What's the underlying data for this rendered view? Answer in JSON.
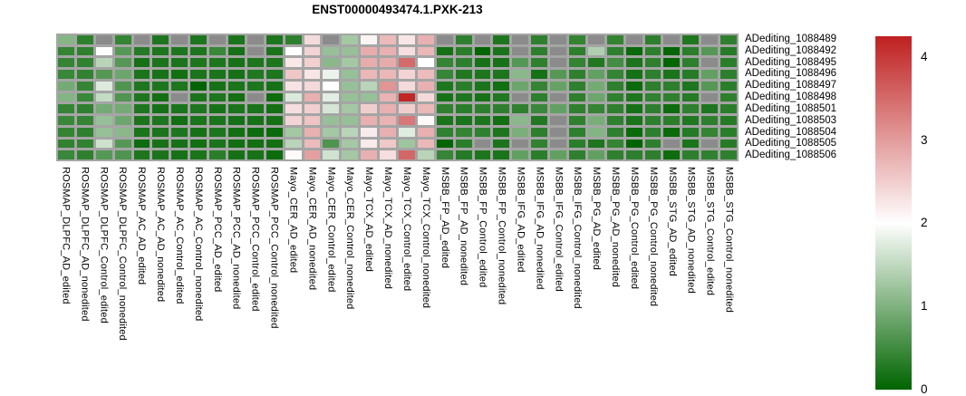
{
  "title": "ENST00000493474.1.PXK-213",
  "chart_data": {
    "type": "heatmap",
    "title": "ENST00000493474.1.PXK-213",
    "rows": [
      "ADediting_1088489",
      "ADediting_1088492",
      "ADediting_1088495",
      "ADediting_1088496",
      "ADediting_1088497",
      "ADediting_1088498",
      "ADediting_1088501",
      "ADediting_1088503",
      "ADediting_1088504",
      "ADediting_1088505",
      "ADediting_1088506"
    ],
    "columns": [
      "ROSMAP_DLPFC_AD_edited",
      "ROSMAP_DLPFC_AD_nonedited",
      "ROSMAP_DLPFC_Control_edited",
      "ROSMAP_DLPFC_Control_nonedited",
      "ROSMAP_AC_AD_edited",
      "ROSMAP_AC_AD_nonedited",
      "ROSMAP_AC_Control_edited",
      "ROSMAP_AC_Control_nonedited",
      "ROSMAP_PCC_AD_edited",
      "ROSMAP_PCC_AD_nonedited",
      "ROSMAP_PCC_Control_edited",
      "ROSMAP_PCC_Control_nonedited",
      "Mayo_CER_AD_edited",
      "Mayo_CER_AD_nonedited",
      "Mayo_CER_Control_edited",
      "Mayo_CER_Control_nonedited",
      "Mayo_TCX_AD_edited",
      "Mayo_TCX_AD_nonedited",
      "Mayo_TCX_Control_edited",
      "Mayo_TCX_Control_nonedited",
      "MSBB_FP_AD_edited",
      "MSBB_FP_AD_nonedited",
      "MSBB_FP_Control_edited",
      "MSBB_FP_Control_nonedited",
      "MSBB_IFG_AD_edited",
      "MSBB_IFG_AD_nonedited",
      "MSBB_IFG_Control_edited",
      "MSBB_IFG_Control_nonedited",
      "MSBB_PG_AD_edited",
      "MSBB_PG_AD_nonedited",
      "MSBB_PG_Control_edited",
      "MSBB_PG_Control_nonedited",
      "MSBB_STG_AD_edited",
      "MSBB_STG_AD_nonedited",
      "MSBB_STG_Control_edited",
      "MSBB_STG_Control_nonedited"
    ],
    "values": [
      [
        1.05,
        0.36,
        "NA",
        0.41,
        "NA",
        0.23,
        "NA",
        0.23,
        "NA",
        0.21,
        "NA",
        0.23,
        0.36,
        2.35,
        "NA",
        1.29,
        2.1,
        2.7,
        2.25,
        2.8,
        "NA",
        0.36,
        "NA",
        0.23,
        "NA",
        0.36,
        "NA",
        0.4,
        "NA",
        0.4,
        "NA",
        0.35,
        "NA",
        0.24,
        "NA",
        0.36
      ],
      [
        0.41,
        0.36,
        2.0,
        0.67,
        0.29,
        0.23,
        0.23,
        0.23,
        0.45,
        0.17,
        "NA",
        0.21,
        2.0,
        2.43,
        1.19,
        1.19,
        2.83,
        2.8,
        2.33,
        2.72,
        0.17,
        0.33,
        0.02,
        0.21,
        "NA",
        0.35,
        "NA",
        0.35,
        1.38,
        0.36,
        0.08,
        0.35,
        0.03,
        0.33,
        0.67,
        0.3
      ],
      [
        0.41,
        0.38,
        1.45,
        0.67,
        0.17,
        0.21,
        0.21,
        0.23,
        0.23,
        0.18,
        0.23,
        0.23,
        2.23,
        2.47,
        1.08,
        1.29,
        2.83,
        2.85,
        3.5,
        2.0,
        0.41,
        0.35,
        0.18,
        0.18,
        0.67,
        0.36,
        "NA",
        0.4,
        0.26,
        0.53,
        0.21,
        0.35,
        0.02,
        0.35,
        "NA",
        0.33
      ],
      [
        0.45,
        0.38,
        0.67,
        0.85,
        0.21,
        0.18,
        0.14,
        0.21,
        0.2,
        0.17,
        0.26,
        0.23,
        2.57,
        2.25,
        1.85,
        1.19,
        2.72,
        2.72,
        2.43,
        2.68,
        0.43,
        0.26,
        0.23,
        0.23,
        1.08,
        0.17,
        0.67,
        0.36,
        0.77,
        0.41,
        0.17,
        0.35,
        0.2,
        0.3,
        0.77,
        0.35
      ],
      [
        0.91,
        0.41,
        1.73,
        0.62,
        0.23,
        0.23,
        0.23,
        0.0,
        0.17,
        0.2,
        0.23,
        0.17,
        2.28,
        2.37,
        2.0,
        1.19,
        1.45,
        3.07,
        2.37,
        2.8,
        0.23,
        0.33,
        0.21,
        0.14,
        0.85,
        0.41,
        0.8,
        0.36,
        0.91,
        0.36,
        0.09,
        0.35,
        0.35,
        0.23,
        0.67,
        0.33
      ],
      [
        1.03,
        0.45,
        1.54,
        0.62,
        0.23,
        0.14,
        "NA",
        0.21,
        0.23,
        0.14,
        "NA",
        0.1,
        1.72,
        2.8,
        1.78,
        1.19,
        1.19,
        2.77,
        4.18,
        2.37,
        0.18,
        0.23,
        0.18,
        0.26,
        "NA",
        0.35,
        "NA",
        0.35,
        0.85,
        0.36,
        0.23,
        0.38,
        0.36,
        0.29,
        "NA",
        0.35
      ],
      [
        0.41,
        0.36,
        0.91,
        0.91,
        0.23,
        0.17,
        0.2,
        0.23,
        0.18,
        0.2,
        0.2,
        0.14,
        2.33,
        2.47,
        1.68,
        1.29,
        2.49,
        2.8,
        2.49,
        2.72,
        0.36,
        0.33,
        0.35,
        0.35,
        0.36,
        0.45,
        0.77,
        0.36,
        0.41,
        0.36,
        0.17,
        0.35,
        0.1,
        0.36,
        0.23,
        0.33
      ],
      [
        0.45,
        0.41,
        1.19,
        0.85,
        0.21,
        0.23,
        0.14,
        0.2,
        0.21,
        0.17,
        0.18,
        0.17,
        2.43,
        2.6,
        1.19,
        1.19,
        2.8,
        2.77,
        3.36,
        2.05,
        0.21,
        0.2,
        0.23,
        0.14,
        1.08,
        0.26,
        "NA",
        0.36,
        0.95,
        0.36,
        0.2,
        0.35,
        0.33,
        0.24,
        0.35,
        0.29
      ],
      [
        0.41,
        0.36,
        1.19,
        1.08,
        0.2,
        0.21,
        0.23,
        0.17,
        0.23,
        0.14,
        0.1,
        0.09,
        1.29,
        2.8,
        1.29,
        1.45,
        2.2,
        2.8,
        1.75,
        2.8,
        0.38,
        0.41,
        0.37,
        0.23,
        0.96,
        0.35,
        "NA",
        0.36,
        1.03,
        0.36,
        0.09,
        0.35,
        0.08,
        0.29,
        0.41,
        0.33
      ],
      [
        0.38,
        0.38,
        1.61,
        0.67,
        0.1,
        0.18,
        0.17,
        0.14,
        0.2,
        0.14,
        0.14,
        0.14,
        1.45,
        2.68,
        0.62,
        1.29,
        2.2,
        2.55,
        1.25,
        2.72,
        0.0,
        0.33,
        "NA",
        0.21,
        "NA",
        0.38,
        "NA",
        0.33,
        0.23,
        0.41,
        0.0,
        0.35,
        "NA",
        0.2,
        "NA",
        0.3
      ],
      [
        0.45,
        0.36,
        0.67,
        0.62,
        0.23,
        0.21,
        0.18,
        0.2,
        0.33,
        0.17,
        0.18,
        0.1,
        2.05,
        2.96,
        1.63,
        1.29,
        2.8,
        2.33,
        3.54,
        1.45,
        0.43,
        0.29,
        0.23,
        0.2,
        0.77,
        0.33,
        0.77,
        0.36,
        0.77,
        0.36,
        0.35,
        0.35,
        0.1,
        0.35,
        0.37,
        0.36
      ]
    ],
    "na_value": "NA",
    "colormap": {
      "low_color": "#006400",
      "mid_color": "#ffffff",
      "high_color": "#bf2020",
      "low": 0,
      "mid": 2,
      "high": 4.25
    },
    "na_color": "#8b8b8b",
    "gap_color": "#a5a5a5",
    "legend_position": "right",
    "colorbar": {
      "min": 0,
      "max": 4.25,
      "tick_labels": [
        "4",
        "3",
        "2",
        "1",
        "0"
      ],
      "tick_values": [
        4,
        3,
        2,
        1,
        0
      ]
    }
  }
}
